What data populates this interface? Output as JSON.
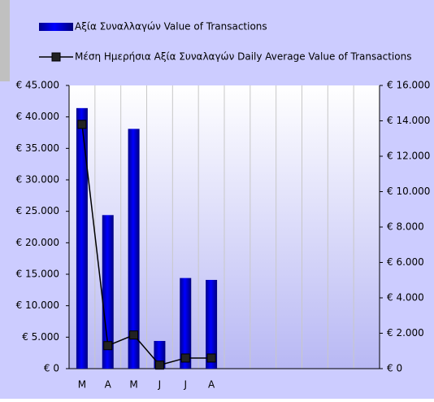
{
  "chart_data": {
    "type": "bar",
    "categories": [
      "M",
      "A",
      "M",
      "J",
      "J",
      "A",
      null,
      null,
      null,
      null,
      null,
      null
    ],
    "series": [
      {
        "name": "Αξία Συναλλαγών Value of Transactions",
        "type": "bar",
        "color": "#0000ff",
        "values": [
          41400,
          24400,
          38100,
          4400,
          14400,
          14100,
          null,
          null,
          null,
          null,
          null,
          null
        ]
      },
      {
        "name": "Μέση Ημερήσια Αξία Συναλαγών Daily Average Value of Transactions",
        "type": "line",
        "axis": "y2",
        "color": "#000000",
        "values": [
          13800,
          1300,
          1900,
          200,
          600,
          600,
          null,
          null,
          null,
          null,
          null,
          null
        ]
      }
    ],
    "ylim": [
      0,
      45000
    ],
    "yticks": [
      {
        "value": 0,
        "label": "€ 0"
      },
      {
        "value": 5000,
        "label": "€ 5.000"
      },
      {
        "value": 10000,
        "label": "€ 10.000"
      },
      {
        "value": 15000,
        "label": "€ 15.000"
      },
      {
        "value": 20000,
        "label": "€ 20.000"
      },
      {
        "value": 25000,
        "label": "€ 25.000"
      },
      {
        "value": 30000,
        "label": "€ 30.000"
      },
      {
        "value": 35000,
        "label": "€ 35.000"
      },
      {
        "value": 40000,
        "label": "€ 40.000"
      },
      {
        "value": 45000,
        "label": "€ 45.000"
      }
    ],
    "y2lim": [
      0,
      16000
    ],
    "y2ticks": [
      {
        "value": 0,
        "label": "€ 0"
      },
      {
        "value": 2000,
        "label": "€ 2.000"
      },
      {
        "value": 4000,
        "label": "€ 4.000"
      },
      {
        "value": 6000,
        "label": "€ 6.000"
      },
      {
        "value": 8000,
        "label": "€ 8.000"
      },
      {
        "value": 10000,
        "label": "€ 10.000"
      },
      {
        "value": 12000,
        "label": "€ 12.000"
      },
      {
        "value": 14000,
        "label": "€ 14.000"
      },
      {
        "value": 16000,
        "label": "€ 16.000"
      }
    ],
    "grid": "x"
  }
}
